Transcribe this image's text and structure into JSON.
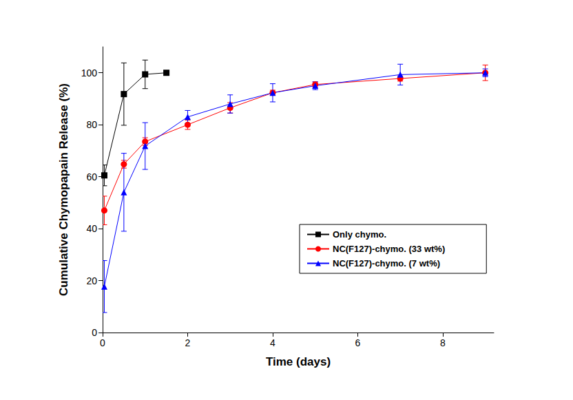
{
  "chart_data": {
    "type": "line",
    "x_label": "Time (days)",
    "y_label": "Cumulative Chymopapain Release (%)",
    "xlim": [
      0,
      9.2
    ],
    "xticks": [
      0,
      2,
      4,
      6,
      8
    ],
    "ylim": [
      0,
      110
    ],
    "yticks": [
      0,
      20,
      40,
      60,
      80,
      100
    ],
    "grid": false,
    "legend": "right",
    "series": [
      {
        "name": "Only chymo.",
        "color": "#000000",
        "marker": "square",
        "x": [
          0.04,
          0.5,
          1,
          1.5
        ],
        "values": [
          60.5,
          91.8,
          99.4,
          100
        ],
        "errors": [
          4,
          12,
          5.5,
          0
        ]
      },
      {
        "name": "NC(F127)-chymo. (33 wt%)",
        "color": "#ff0000",
        "marker": "circle",
        "x": [
          0.04,
          0.5,
          1,
          2,
          3,
          4,
          5,
          7,
          9
        ],
        "values": [
          47,
          64.8,
          73.5,
          80,
          86.5,
          92.3,
          95.5,
          97.8,
          100
        ],
        "errors": [
          5.5,
          1.5,
          1.5,
          1.8,
          2,
          1,
          1,
          1,
          3
        ]
      },
      {
        "name": "NC(F127)-chymo. (7 wt%)",
        "color": "#0000ff",
        "marker": "triangle",
        "x": [
          0.04,
          0.5,
          1,
          2,
          3,
          4,
          5,
          7,
          9
        ],
        "values": [
          17.7,
          54,
          71.8,
          83,
          88,
          92.3,
          95,
          99.3,
          100
        ],
        "errors": [
          10,
          15,
          9,
          2.5,
          3.5,
          3.5,
          1.5,
          4,
          1.5
        ]
      }
    ]
  }
}
